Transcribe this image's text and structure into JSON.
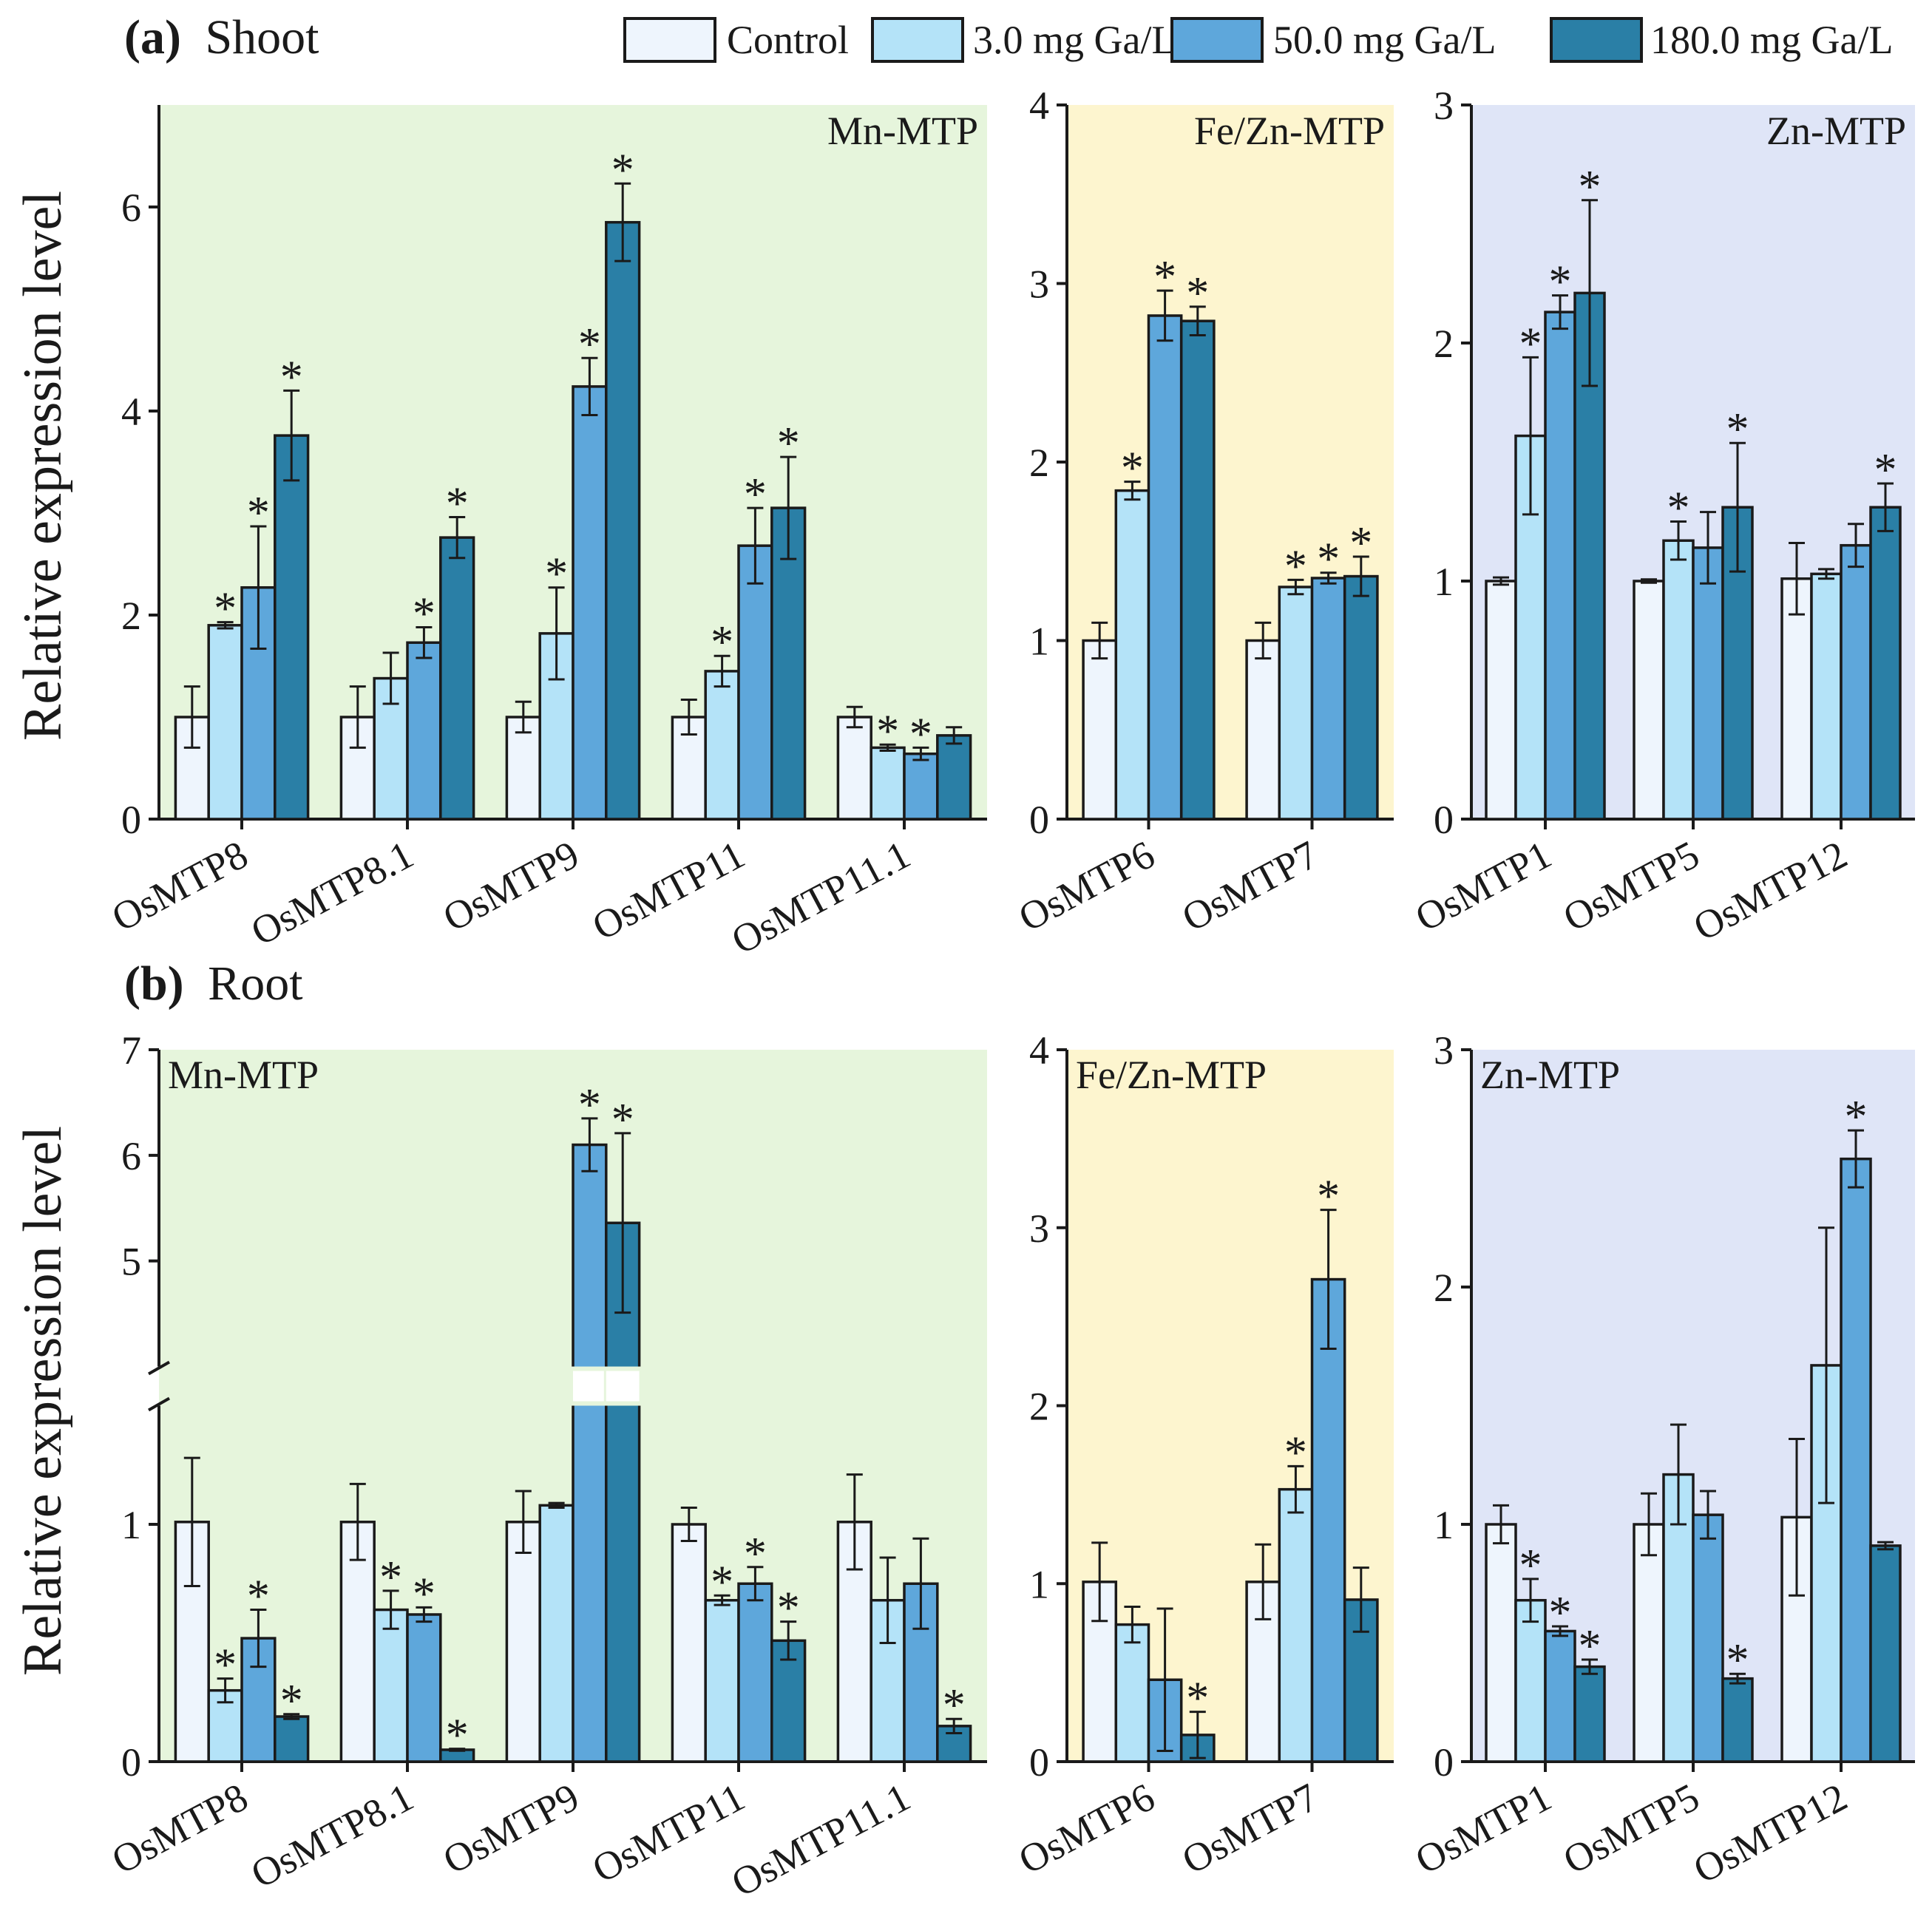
{
  "legend": {
    "entries": [
      "Control",
      "3.0 mg Ga/L",
      "50.0 mg Ga/L",
      "180.0 mg Ga/L"
    ],
    "colors": [
      "#eef5fd",
      "#b4e3f8",
      "#5ea7db",
      "#2a7fa6"
    ]
  },
  "y_axis_title": "Relative expression level",
  "significance_marker": "*",
  "panels": [
    {
      "id": "a",
      "label": "(a)",
      "tissue": "Shoot"
    },
    {
      "id": "b",
      "label": "(b)",
      "tissue": "Root"
    }
  ],
  "group_colors": {
    "Mn-MTP": "#e6f5dc",
    "Fe/Zn-MTP": "#fdf5cf",
    "Zn-MTP": "#dfe5f7"
  },
  "chart_data": [
    {
      "type": "bar",
      "panel": "a",
      "group": "Mn-MTP",
      "title": "Mn-MTP",
      "ylabel": "Relative expression level",
      "ylim": [
        0,
        7
      ],
      "yticks": [
        0,
        2,
        4,
        6
      ],
      "categories": [
        "OsMTP8",
        "OsMTP8.1",
        "OsMTP9",
        "OsMTP11",
        "OsMTP11.1"
      ],
      "series": [
        {
          "name": "Control",
          "values": [
            1.0,
            1.0,
            1.0,
            1.0,
            1.0
          ],
          "errors": [
            0.3,
            0.3,
            0.15,
            0.17,
            0.1
          ],
          "significant": [
            false,
            false,
            false,
            false,
            false
          ]
        },
        {
          "name": "3.0 mg Ga/L",
          "values": [
            1.9,
            1.38,
            1.82,
            1.45,
            0.7
          ],
          "errors": [
            0.03,
            0.25,
            0.45,
            0.15,
            0.03
          ],
          "significant": [
            true,
            false,
            true,
            true,
            true
          ]
        },
        {
          "name": "50.0 mg Ga/L",
          "values": [
            2.27,
            1.73,
            4.24,
            2.68,
            0.64
          ],
          "errors": [
            0.6,
            0.15,
            0.28,
            0.37,
            0.06
          ],
          "significant": [
            true,
            true,
            true,
            true,
            true
          ]
        },
        {
          "name": "180.0 mg Ga/L",
          "values": [
            3.76,
            2.76,
            5.85,
            3.05,
            0.82
          ],
          "errors": [
            0.44,
            0.2,
            0.38,
            0.5,
            0.08
          ],
          "significant": [
            true,
            true,
            true,
            true,
            false
          ]
        }
      ]
    },
    {
      "type": "bar",
      "panel": "a",
      "group": "Fe/Zn-MTP",
      "title": "Fe/Zn-MTP",
      "ylim": [
        0,
        4
      ],
      "yticks": [
        0,
        1,
        2,
        3,
        4
      ],
      "categories": [
        "OsMTP6",
        "OsMTP7"
      ],
      "series": [
        {
          "name": "Control",
          "values": [
            1.0,
            1.0
          ],
          "errors": [
            0.1,
            0.1
          ],
          "significant": [
            false,
            false
          ]
        },
        {
          "name": "3.0 mg Ga/L",
          "values": [
            1.84,
            1.3
          ],
          "errors": [
            0.05,
            0.04
          ],
          "significant": [
            true,
            true
          ]
        },
        {
          "name": "50.0 mg Ga/L",
          "values": [
            2.82,
            1.35
          ],
          "errors": [
            0.14,
            0.03
          ],
          "significant": [
            true,
            true
          ]
        },
        {
          "name": "180.0 mg Ga/L",
          "values": [
            2.79,
            1.36
          ],
          "errors": [
            0.08,
            0.11
          ],
          "significant": [
            true,
            true
          ]
        }
      ]
    },
    {
      "type": "bar",
      "panel": "a",
      "group": "Zn-MTP",
      "title": "Zn-MTP",
      "ylim": [
        0,
        3
      ],
      "yticks": [
        0,
        1,
        2,
        3
      ],
      "categories": [
        "OsMTP1",
        "OsMTP5",
        "OsMTP12"
      ],
      "series": [
        {
          "name": "Control",
          "values": [
            1.0,
            1.0,
            1.01
          ],
          "errors": [
            0.015,
            0.007,
            0.15
          ],
          "significant": [
            false,
            false,
            false
          ]
        },
        {
          "name": "3.0 mg Ga/L",
          "values": [
            1.61,
            1.17,
            1.03
          ],
          "errors": [
            0.33,
            0.08,
            0.02
          ],
          "significant": [
            true,
            true,
            false
          ]
        },
        {
          "name": "50.0 mg Ga/L",
          "values": [
            2.13,
            1.14,
            1.15
          ],
          "errors": [
            0.07,
            0.15,
            0.09
          ],
          "significant": [
            true,
            false,
            false
          ]
        },
        {
          "name": "180.0 mg Ga/L",
          "values": [
            2.21,
            1.31,
            1.31
          ],
          "errors": [
            0.39,
            0.27,
            0.1
          ],
          "significant": [
            true,
            true,
            true
          ]
        }
      ]
    },
    {
      "type": "bar",
      "panel": "b",
      "group": "Mn-MTP",
      "title": "Mn-MTP",
      "ylabel": "Relative expression level",
      "broken_axis": {
        "lower": [
          0,
          1.5
        ],
        "upper": [
          4,
          7
        ]
      },
      "ylim": [
        0,
        7
      ],
      "yticks": [
        0,
        1,
        5,
        6,
        7
      ],
      "categories": [
        "OsMTP8",
        "OsMTP8.1",
        "OsMTP9",
        "OsMTP11",
        "OsMTP11.1"
      ],
      "series": [
        {
          "name": "Control",
          "values": [
            1.01,
            1.01,
            1.01,
            1.0,
            1.01
          ],
          "errors": [
            0.27,
            0.16,
            0.13,
            0.07,
            0.2
          ],
          "significant": [
            false,
            false,
            false,
            false,
            false
          ]
        },
        {
          "name": "3.0 mg Ga/L",
          "values": [
            0.3,
            0.64,
            1.08,
            0.68,
            0.68
          ],
          "errors": [
            0.05,
            0.08,
            0.01,
            0.02,
            0.18
          ],
          "significant": [
            true,
            true,
            false,
            true,
            false
          ]
        },
        {
          "name": "50.0 mg Ga/L",
          "values": [
            0.52,
            0.62,
            6.1,
            0.75,
            0.75
          ],
          "errors": [
            0.12,
            0.03,
            0.25,
            0.07,
            0.19
          ],
          "significant": [
            true,
            true,
            true,
            true,
            false
          ]
        },
        {
          "name": "180.0 mg Ga/L",
          "values": [
            0.19,
            0.05,
            5.36,
            0.51,
            0.15
          ],
          "errors": [
            0.01,
            0.004,
            0.85,
            0.08,
            0.03
          ],
          "significant": [
            true,
            true,
            true,
            true,
            true
          ]
        }
      ]
    },
    {
      "type": "bar",
      "panel": "b",
      "group": "Fe/Zn-MTP",
      "title": "Fe/Zn-MTP",
      "ylim": [
        0,
        4
      ],
      "yticks": [
        0,
        1,
        2,
        3,
        4
      ],
      "categories": [
        "OsMTP6",
        "OsMTP7"
      ],
      "series": [
        {
          "name": "Control",
          "values": [
            1.01,
            1.01
          ],
          "errors": [
            0.22,
            0.21
          ],
          "significant": [
            false,
            false
          ]
        },
        {
          "name": "3.0 mg Ga/L",
          "values": [
            0.77,
            1.53
          ],
          "errors": [
            0.1,
            0.13
          ],
          "significant": [
            false,
            true
          ]
        },
        {
          "name": "50.0 mg Ga/L",
          "values": [
            0.46,
            2.71
          ],
          "errors": [
            0.4,
            0.39
          ],
          "significant": [
            false,
            true
          ]
        },
        {
          "name": "180.0 mg Ga/L",
          "values": [
            0.15,
            0.91
          ],
          "errors": [
            0.13,
            0.18
          ],
          "significant": [
            true,
            false
          ]
        }
      ]
    },
    {
      "type": "bar",
      "panel": "b",
      "group": "Zn-MTP",
      "title": "Zn-MTP",
      "ylim": [
        0,
        3
      ],
      "yticks": [
        0,
        1,
        2,
        3
      ],
      "categories": [
        "OsMTP1",
        "OsMTP5",
        "OsMTP12"
      ],
      "series": [
        {
          "name": "Control",
          "values": [
            1.0,
            1.0,
            1.03
          ],
          "errors": [
            0.08,
            0.13,
            0.33
          ],
          "significant": [
            false,
            false,
            false
          ]
        },
        {
          "name": "3.0 mg Ga/L",
          "values": [
            0.68,
            1.21,
            1.67
          ],
          "errors": [
            0.09,
            0.21,
            0.58
          ],
          "significant": [
            true,
            false,
            false
          ]
        },
        {
          "name": "50.0 mg Ga/L",
          "values": [
            0.55,
            1.04,
            2.54
          ],
          "errors": [
            0.02,
            0.1,
            0.12
          ],
          "significant": [
            true,
            false,
            true
          ]
        },
        {
          "name": "180.0 mg Ga/L",
          "values": [
            0.4,
            0.35,
            0.91
          ],
          "errors": [
            0.03,
            0.02,
            0.015
          ],
          "significant": [
            true,
            true,
            false
          ]
        }
      ]
    }
  ]
}
